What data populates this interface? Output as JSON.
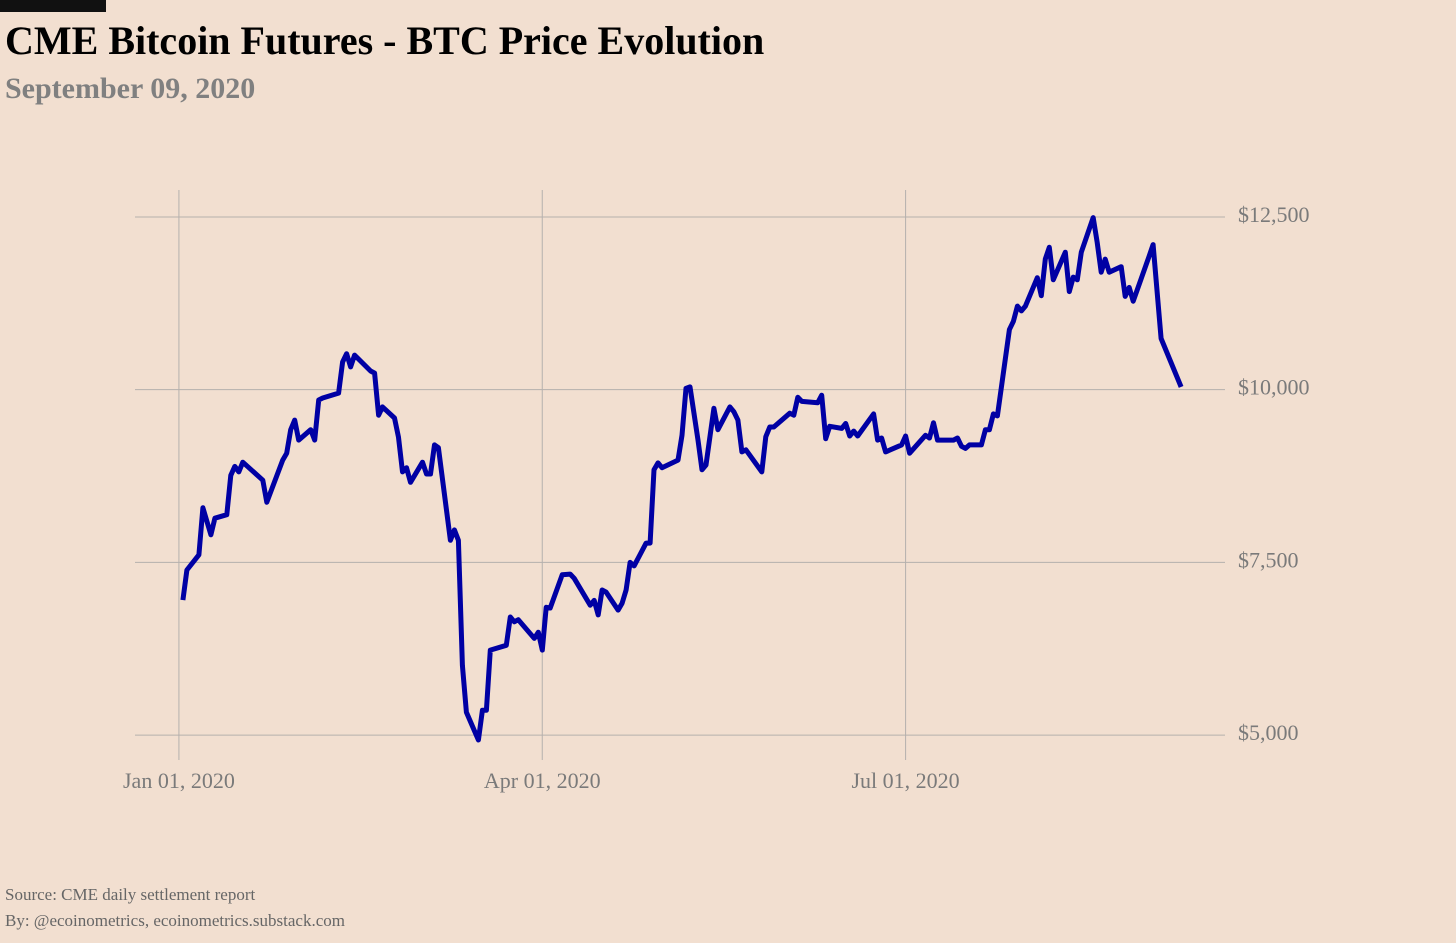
{
  "chart_data": {
    "type": "line",
    "title": "CME Bitcoin Futures - BTC Price Evolution",
    "subtitle": "September 09, 2020",
    "source": "Source: CME daily settlement report",
    "byline": "By: @ecoinometrics, ecoinometrics.substack.com",
    "color": "#0000a4",
    "grid": true,
    "xlim": [
      "2019-12-21",
      "2020-09-19"
    ],
    "xticks": [
      {
        "value": "2020-01-01",
        "label": "Jan 01, 2020"
      },
      {
        "value": "2020-04-01",
        "label": "Apr 01, 2020"
      },
      {
        "value": "2020-07-01",
        "label": "Jul 01, 2020"
      }
    ],
    "ylim": [
      4640,
      12890
    ],
    "yticks": [
      {
        "value": 5000,
        "label": "$5,000"
      },
      {
        "value": 7500,
        "label": "$7,500"
      },
      {
        "value": 10000,
        "label": "$10,000"
      },
      {
        "value": 12500,
        "label": "$12,500"
      }
    ],
    "x": [
      "2020-01-02",
      "2020-01-03",
      "2020-01-06",
      "2020-01-07",
      "2020-01-09",
      "2020-01-10",
      "2020-01-13",
      "2020-01-14",
      "2020-01-15",
      "2020-01-16",
      "2020-01-17",
      "2020-01-22",
      "2020-01-23",
      "2020-01-27",
      "2020-01-28",
      "2020-01-29",
      "2020-01-30",
      "2020-01-31",
      "2020-02-03",
      "2020-02-04",
      "2020-02-05",
      "2020-02-06",
      "2020-02-10",
      "2020-02-11",
      "2020-02-12",
      "2020-02-13",
      "2020-02-14",
      "2020-02-18",
      "2020-02-19",
      "2020-02-20",
      "2020-02-21",
      "2020-02-24",
      "2020-02-25",
      "2020-02-26",
      "2020-02-27",
      "2020-02-28",
      "2020-03-02",
      "2020-03-03",
      "2020-03-04",
      "2020-03-05",
      "2020-03-06",
      "2020-03-09",
      "2020-03-10",
      "2020-03-11",
      "2020-03-12",
      "2020-03-13",
      "2020-03-16",
      "2020-03-17",
      "2020-03-18",
      "2020-03-19",
      "2020-03-23",
      "2020-03-24",
      "2020-03-25",
      "2020-03-26",
      "2020-03-30",
      "2020-03-31",
      "2020-04-01",
      "2020-04-02",
      "2020-04-03",
      "2020-04-06",
      "2020-04-08",
      "2020-04-09",
      "2020-04-13",
      "2020-04-14",
      "2020-04-15",
      "2020-04-16",
      "2020-04-17",
      "2020-04-20",
      "2020-04-21",
      "2020-04-22",
      "2020-04-23",
      "2020-04-24",
      "2020-04-27",
      "2020-04-28",
      "2020-04-29",
      "2020-04-30",
      "2020-05-01",
      "2020-05-05",
      "2020-05-06",
      "2020-05-07",
      "2020-05-08",
      "2020-05-10",
      "2020-05-11",
      "2020-05-12",
      "2020-05-14",
      "2020-05-15",
      "2020-05-18",
      "2020-05-19",
      "2020-05-20",
      "2020-05-21",
      "2020-05-22",
      "2020-05-26",
      "2020-05-27",
      "2020-05-28",
      "2020-05-29",
      "2020-06-02",
      "2020-06-03",
      "2020-06-04",
      "2020-06-05",
      "2020-06-09",
      "2020-06-10",
      "2020-06-11",
      "2020-06-12",
      "2020-06-15",
      "2020-06-16",
      "2020-06-17",
      "2020-06-18",
      "2020-06-19",
      "2020-06-23",
      "2020-06-24",
      "2020-06-25",
      "2020-06-26",
      "2020-06-30",
      "2020-07-01",
      "2020-07-02",
      "2020-07-06",
      "2020-07-07",
      "2020-07-08",
      "2020-07-09",
      "2020-07-13",
      "2020-07-14",
      "2020-07-15",
      "2020-07-16",
      "2020-07-17",
      "2020-07-20",
      "2020-07-21",
      "2020-07-22",
      "2020-07-23",
      "2020-07-24",
      "2020-07-27",
      "2020-07-28",
      "2020-07-29",
      "2020-07-30",
      "2020-07-31",
      "2020-08-03",
      "2020-08-04",
      "2020-08-05",
      "2020-08-06",
      "2020-08-07",
      "2020-08-10",
      "2020-08-11",
      "2020-08-12",
      "2020-08-13",
      "2020-08-14",
      "2020-08-17",
      "2020-08-18",
      "2020-08-19",
      "2020-08-20",
      "2020-08-21",
      "2020-08-24",
      "2020-08-25",
      "2020-08-26",
      "2020-08-27",
      "2020-08-31",
      "2020-09-01",
      "2020-09-03",
      "2020-09-08"
    ],
    "values": [
      6955,
      7390,
      7610,
      8290,
      7900,
      8140,
      8190,
      8760,
      8890,
      8810,
      8950,
      8690,
      8370,
      8980,
      9080,
      9420,
      9560,
      9270,
      9420,
      9270,
      9850,
      9880,
      9950,
      10400,
      10520,
      10330,
      10500,
      10270,
      10240,
      9630,
      9750,
      9590,
      9310,
      8810,
      8870,
      8660,
      8950,
      8780,
      8780,
      9200,
      9160,
      7820,
      7970,
      7820,
      6010,
      5330,
      4930,
      5360,
      5360,
      6230,
      6300,
      6710,
      6640,
      6670,
      6400,
      6490,
      6230,
      6850,
      6840,
      7320,
      7330,
      7270,
      6880,
      6950,
      6740,
      7100,
      7070,
      6810,
      6910,
      7100,
      7500,
      7450,
      7780,
      7780,
      8840,
      8940,
      8870,
      8980,
      9340,
      10020,
      10040,
      9270,
      8840,
      8910,
      9730,
      9420,
      9750,
      9680,
      9560,
      9100,
      9130,
      8810,
      9320,
      9460,
      9460,
      9660,
      9630,
      9890,
      9830,
      9810,
      9920,
      9290,
      9470,
      9440,
      9510,
      9330,
      9400,
      9330,
      9650,
      9270,
      9300,
      9100,
      9200,
      9330,
      9080,
      9340,
      9300,
      9520,
      9270,
      9270,
      9300,
      9180,
      9150,
      9200,
      9200,
      9420,
      9420,
      9650,
      9620,
      10870,
      10990,
      11210,
      11140,
      11210,
      11620,
      11360,
      11890,
      12060,
      11590,
      11990,
      11420,
      11630,
      11590,
      11990,
      12490,
      12130,
      11700,
      11890,
      11700,
      11780,
      11350,
      11480,
      11280,
      11930,
      12100,
      10740,
      10040
    ]
  }
}
